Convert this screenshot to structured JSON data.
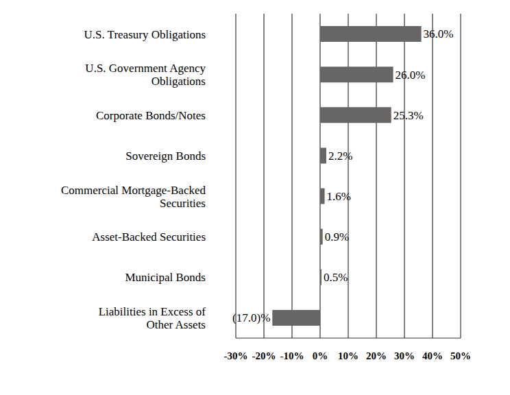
{
  "chart_data": {
    "type": "bar",
    "orientation": "horizontal",
    "categories": [
      "U.S. Treasury Obligations",
      "U.S. Government Agency Obligations",
      "Corporate Bonds/Notes",
      "Sovereign Bonds",
      "Commercial Mortgage-Backed Securities",
      "Asset-Backed Securities",
      "Municipal Bonds",
      "Liabilities in Excess of Other Assets"
    ],
    "values": [
      36.0,
      26.0,
      25.3,
      2.2,
      1.6,
      0.9,
      0.5,
      -17.0
    ],
    "value_labels": [
      "36.0%",
      "26.0%",
      "25.3%",
      "2.2%",
      "1.6%",
      "0.9%",
      "0.5%",
      "(17.0)%"
    ],
    "color": "#686664",
    "xlim": [
      -30,
      50
    ],
    "xticks": [
      {
        "value": -30,
        "label": "-30%"
      },
      {
        "value": -20,
        "label": "-20%"
      },
      {
        "value": -10,
        "label": "-10%"
      },
      {
        "value": 0,
        "label": "0%"
      },
      {
        "value": 10,
        "label": "10%"
      },
      {
        "value": 20,
        "label": "20%"
      },
      {
        "value": 30,
        "label": "30%"
      },
      {
        "value": 40,
        "label": "40%"
      },
      {
        "value": 50,
        "label": "50%"
      }
    ],
    "grid": true,
    "data_labels": true
  }
}
